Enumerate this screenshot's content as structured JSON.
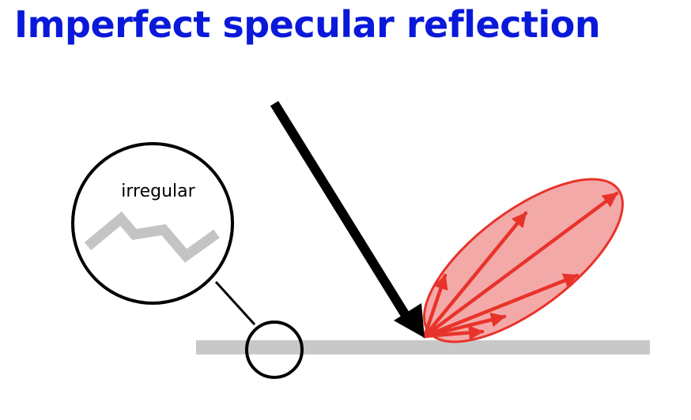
{
  "slide": {
    "title": "Imperfect specular reflection",
    "title_color": "#0a19d9"
  },
  "diagram": {
    "zoom_label": "irregular",
    "colors": {
      "incident_ray": "#000000",
      "lobe_fill": "#f4a9a9",
      "lobe_stroke": "#e8332a",
      "reflected_rays": "#e8332a",
      "surface": "#c8c8c8",
      "zoom_profile": "#c4c4c4",
      "outline": "#000000"
    }
  }
}
